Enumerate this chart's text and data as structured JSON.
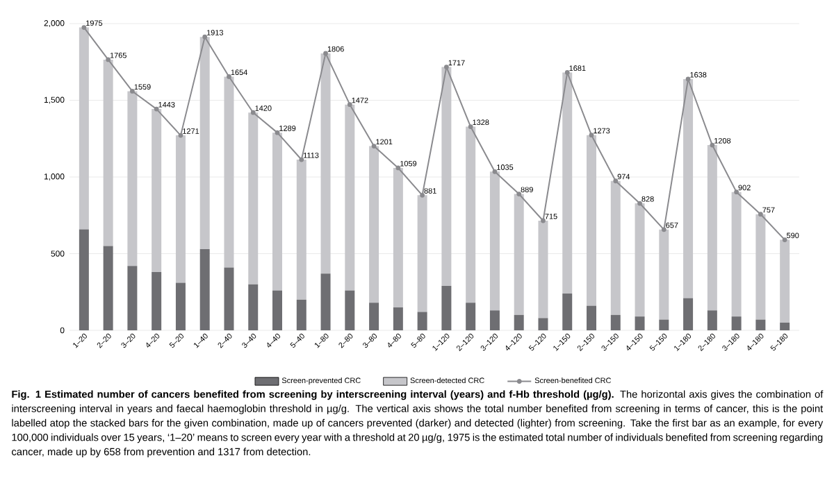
{
  "chart_data": {
    "type": "bar",
    "stacked": true,
    "title": "**Fig. 1  Estimated number of cancers benefited from screening by interscreening interval (years) and f-Hb threshold (µg/g).** The horizontal axis gives the combination of interscreening interval in years and faecal haemoglobin threshold in µg/g. The vertical axis shows the total number benefited from screening in terms of cancer, this is the point labelled atop the stacked bars for the given combination, made up of cancers prevented (darker) and detected (lighter) from screening. Take the first bar as an example, for every 100,000 individuals over 15 years, ‘1–20’ means to screen every year with a threshold at 20 µg/g, 1975 is the estimated total number of individuals benefited from screening regarding cancer, made up by 658 from prevention and 1317 from detection.",
    "categories": [
      "1–20",
      "2–20",
      "3–20",
      "4–20",
      "5–20",
      "1–40",
      "2–40",
      "3–40",
      "4–40",
      "5–40",
      "1–80",
      "2–80",
      "3–80",
      "4–80",
      "5–80",
      "1–120",
      "2–120",
      "3–120",
      "4–120",
      "5–120",
      "1–150",
      "2–150",
      "3–150",
      "4–150",
      "5–150",
      "1–180",
      "2–180",
      "3–180",
      "4–180",
      "5–180"
    ],
    "series": [
      {
        "name": "Screen-prevented CRC",
        "color": "#6e6e72",
        "values": [
          658,
          550,
          420,
          380,
          310,
          530,
          410,
          300,
          260,
          200,
          370,
          260,
          180,
          150,
          120,
          290,
          180,
          130,
          100,
          80,
          240,
          160,
          100,
          90,
          70,
          210,
          130,
          90,
          70,
          50
        ]
      },
      {
        "name": "Screen-detected CRC",
        "color": "#c6c6ca",
        "values": [
          1317,
          1215,
          1139,
          1063,
          961,
          1383,
          1244,
          1120,
          1029,
          913,
          1436,
          1212,
          1021,
          909,
          761,
          1427,
          1148,
          905,
          789,
          635,
          1441,
          1113,
          874,
          738,
          587,
          1428,
          1078,
          812,
          687,
          540
        ]
      },
      {
        "name": "Screen-benefited CRC",
        "type": "line",
        "color": "#8a8a8e",
        "values": [
          1975,
          1765,
          1559,
          1443,
          1271,
          1913,
          1654,
          1420,
          1289,
          1113,
          1806,
          1472,
          1201,
          1059,
          881,
          1717,
          1328,
          1035,
          889,
          715,
          1681,
          1273,
          974,
          828,
          657,
          1638,
          1208,
          902,
          757,
          590
        ],
        "value_labels": [
          "1975",
          "1765",
          "1559",
          "1443",
          "1271",
          "1913",
          "1654",
          "1420",
          "1289",
          "1113",
          "1806",
          "1472",
          "1201",
          "1059",
          "881",
          "1717",
          "1328",
          "1035",
          "889",
          "715",
          "1681",
          "1273",
          "974",
          "828",
          "657",
          "1638",
          "1208",
          "902",
          "757",
          "590"
        ]
      }
    ],
    "ylim": [
      0,
      2000
    ],
    "yticks": [
      0,
      500,
      {
        "value": 1000,
        "label": "1,000"
      },
      {
        "value": 1500,
        "label": "1,500"
      },
      {
        "value": 2000,
        "label": "2,000"
      }
    ],
    "grid": "y",
    "legend": "bottom",
    "marker": "circle"
  }
}
